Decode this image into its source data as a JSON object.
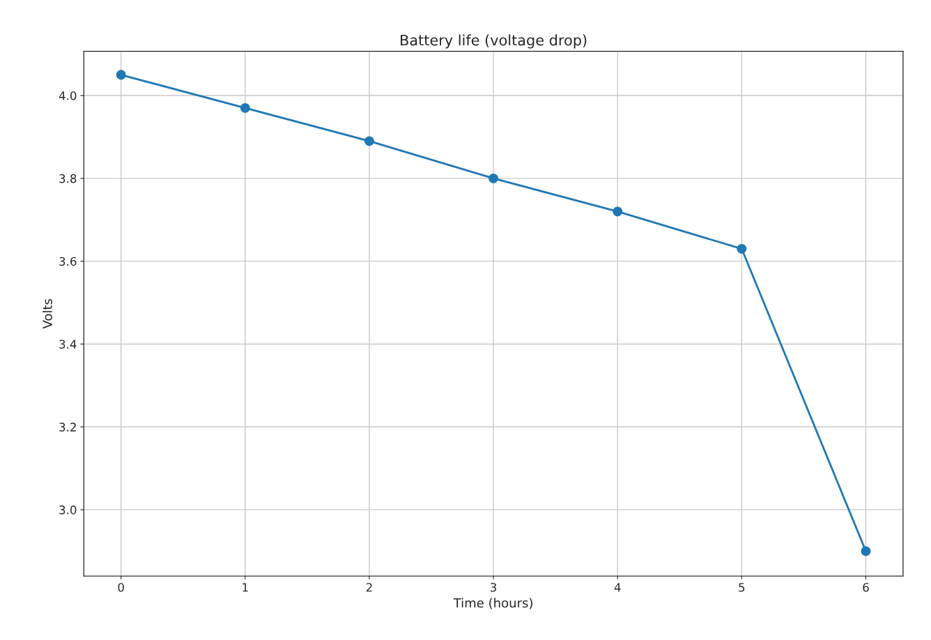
{
  "chart_data": {
    "type": "line",
    "title": "Battery life (voltage drop)",
    "xlabel": "Time (hours)",
    "ylabel": "Volts",
    "x": [
      0,
      1,
      2,
      3,
      4,
      5,
      6
    ],
    "series": [
      {
        "color": "#1f77b4",
        "values": [
          4.05,
          3.97,
          3.89,
          3.8,
          3.72,
          3.63,
          2.9
        ]
      }
    ],
    "xlim": [
      -0.3,
      6.3
    ],
    "xticks": [
      0,
      1,
      2,
      3,
      4,
      5,
      6
    ],
    "ylim": [
      2.84,
      4.107
    ],
    "yticks": [
      {
        "value": 3.0,
        "label": "3.0"
      },
      {
        "value": 3.2,
        "label": "3.2"
      },
      {
        "value": 3.4,
        "label": "3.4"
      },
      {
        "value": 3.6,
        "label": "3.6"
      },
      {
        "value": 3.8,
        "label": "3.8"
      },
      {
        "value": 4.0,
        "label": "4.0"
      }
    ],
    "grid": true,
    "marker": "circle",
    "line_style": "solid"
  }
}
